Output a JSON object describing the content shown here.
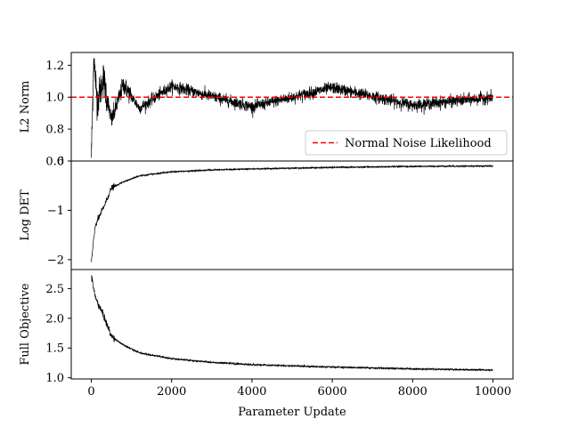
{
  "colors": {
    "series": "#000000",
    "reference": "#ff0000",
    "legend_border": "#cccccc"
  },
  "chart_data": [
    {
      "type": "line",
      "ylabel": "L2 Norm",
      "xlim": [
        -500,
        10500
      ],
      "ylim": [
        0.6,
        1.28
      ],
      "yticks": [
        0.6,
        0.8,
        1.0,
        1.2
      ],
      "ytick_labels": [
        "0.6",
        "0.8",
        "1.0",
        "1.2"
      ],
      "series": [
        {
          "points": [
            [
              0,
              0.62
            ],
            [
              60,
              1.25
            ],
            [
              150,
              0.97
            ],
            [
              300,
              1.12
            ],
            [
              500,
              0.85
            ],
            [
              800,
              1.08
            ],
            [
              1200,
              0.93
            ],
            [
              2000,
              1.07
            ],
            [
              4000,
              0.94
            ],
            [
              6000,
              1.06
            ],
            [
              8000,
              0.95
            ],
            [
              10000,
              1.0
            ]
          ]
        }
      ],
      "reference_line": {
        "y": 1.0,
        "style": "dashed",
        "label": "Normal Noise Likelihood"
      },
      "legend": {
        "placement": "lower-right",
        "entries": [
          "Normal Noise Likelihood"
        ]
      }
    },
    {
      "type": "line",
      "ylabel": "Log DET",
      "xlim": [
        -500,
        10500
      ],
      "ylim": [
        -2.2,
        0.0
      ],
      "yticks": [
        -2,
        -1,
        0
      ],
      "ytick_labels": [
        "−2",
        "−1",
        "0"
      ],
      "series": [
        {
          "points": [
            [
              0,
              -2.05
            ],
            [
              100,
              -1.3
            ],
            [
              300,
              -0.95
            ],
            [
              500,
              -0.55
            ],
            [
              800,
              -0.42
            ],
            [
              1200,
              -0.3
            ],
            [
              2000,
              -0.22
            ],
            [
              3000,
              -0.18
            ],
            [
              4000,
              -0.16
            ],
            [
              6000,
              -0.13
            ],
            [
              8000,
              -0.11
            ],
            [
              10000,
              -0.1
            ]
          ]
        }
      ]
    },
    {
      "type": "line",
      "xlabel": "Parameter Update",
      "ylabel": "Full Objective",
      "xlim": [
        -500,
        10500
      ],
      "ylim": [
        0.98,
        2.82
      ],
      "xticks": [
        0,
        2000,
        4000,
        6000,
        8000,
        10000
      ],
      "xtick_labels": [
        "0",
        "2000",
        "4000",
        "6000",
        "8000",
        "10000"
      ],
      "yticks": [
        1.0,
        1.5,
        2.0,
        2.5
      ],
      "ytick_labels": [
        "1.0",
        "1.5",
        "2.0",
        "2.5"
      ],
      "series": [
        {
          "points": [
            [
              0,
              2.72
            ],
            [
              100,
              2.35
            ],
            [
              300,
              2.05
            ],
            [
              500,
              1.7
            ],
            [
              800,
              1.55
            ],
            [
              1200,
              1.42
            ],
            [
              2000,
              1.32
            ],
            [
              3000,
              1.26
            ],
            [
              4000,
              1.22
            ],
            [
              6000,
              1.18
            ],
            [
              8000,
              1.15
            ],
            [
              10000,
              1.13
            ]
          ]
        }
      ]
    }
  ]
}
